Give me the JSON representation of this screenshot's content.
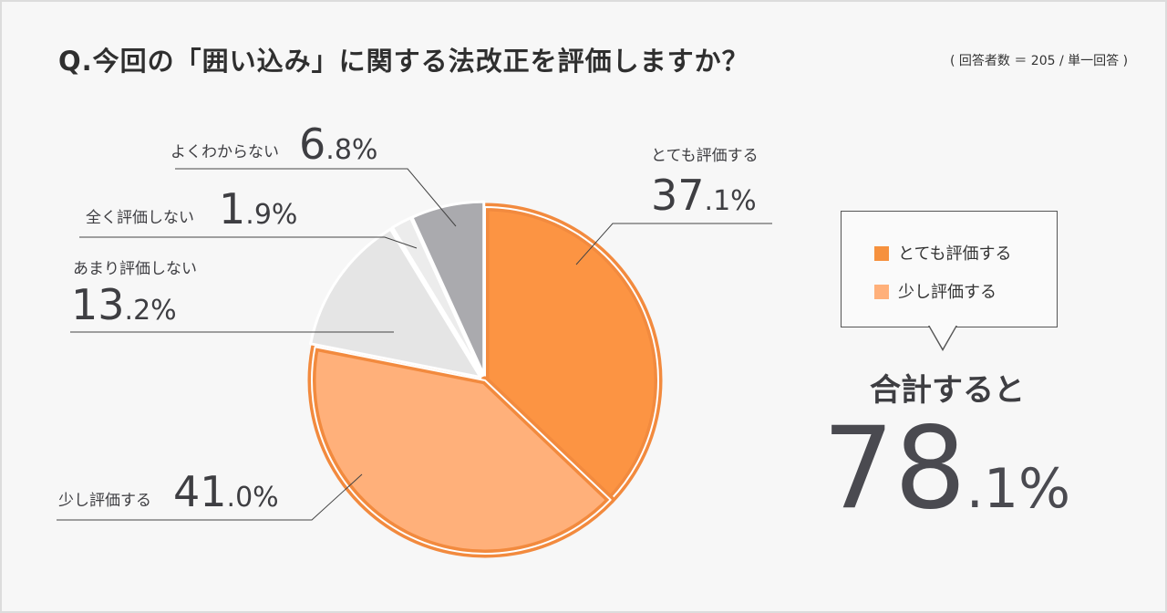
{
  "title": "Q.今回の「囲い込み」に関する法改正を評価しますか？",
  "note": "( 回答者数 ＝ 205 / 単一回答 )",
  "chart_data": {
    "type": "pie",
    "title": "Q.今回の「囲い込み」に関する法改正を評価しますか？",
    "slices": [
      {
        "label": "とても評価する",
        "value": 37.1,
        "int": "37",
        "dec": ".1",
        "color": "#fc9443"
      },
      {
        "label": "少し評価する",
        "value": 41.0,
        "int": "41",
        "dec": ".0",
        "color": "#ffb07a"
      },
      {
        "label": "あまり評価しない",
        "value": 13.2,
        "int": "13",
        "dec": ".2",
        "color": "#e5e5e5"
      },
      {
        "label": "全く評価しない",
        "value": 1.9,
        "int": "1",
        "dec": ".9",
        "color": "#ececec"
      },
      {
        "label": "よくわからない",
        "value": 6.8,
        "int": "6",
        "dec": ".8",
        "color": "#aaaaae"
      }
    ],
    "highlight_color": "#f28a3e",
    "legend": [
      "とても評価する",
      "少し評価する"
    ],
    "legend_placement": "right"
  },
  "legend": {
    "item1": "とても評価する",
    "item2": "少し評価する",
    "color1": "#f6913e",
    "color2": "#ffb07a"
  },
  "total": {
    "label": "合計すると",
    "int": "78",
    "dec": ".1%"
  }
}
